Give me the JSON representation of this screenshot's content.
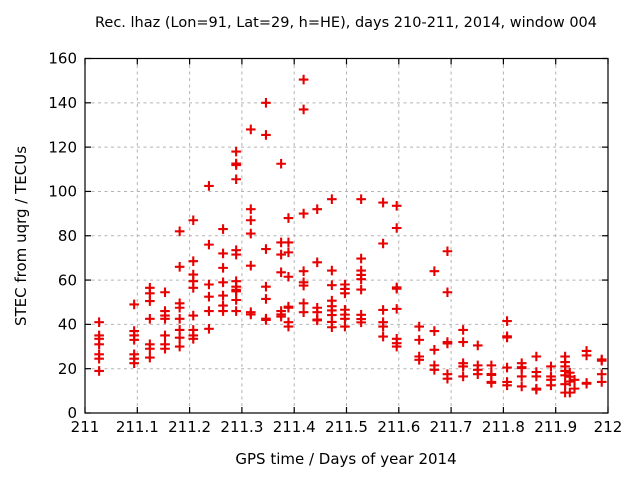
{
  "chart_data": {
    "type": "scatter",
    "title": "Rec. lhaz (Lon=91, Lat=29, h=HE), days 210-211, 2014, window 004",
    "xlabel": "GPS time / Days of year 2014",
    "ylabel": "STEC from uqrg / TECUs",
    "xlim": [
      211,
      212
    ],
    "ylim": [
      0,
      160
    ],
    "grid": true,
    "legend": "none",
    "marker": {
      "shape": "plus",
      "color": "#e60000",
      "size": 10,
      "stroke_width": 2.1
    },
    "grid_color": "#b3b3b3",
    "axis_color": "#000000",
    "background": "#ffffff",
    "xticks": [
      {
        "v": 211.0,
        "label": "211"
      },
      {
        "v": 211.1,
        "label": "211.1"
      },
      {
        "v": 211.2,
        "label": "211.2"
      },
      {
        "v": 211.3,
        "label": "211.3"
      },
      {
        "v": 211.4,
        "label": "211.4"
      },
      {
        "v": 211.5,
        "label": "211.5"
      },
      {
        "v": 211.6,
        "label": "211.6"
      },
      {
        "v": 211.7,
        "label": "211.7"
      },
      {
        "v": 211.8,
        "label": "211.8"
      },
      {
        "v": 211.9,
        "label": "211.9"
      },
      {
        "v": 212.0,
        "label": "212"
      }
    ],
    "yticks": [
      {
        "v": 0,
        "label": "0"
      },
      {
        "v": 20,
        "label": "20"
      },
      {
        "v": 40,
        "label": "40"
      },
      {
        "v": 60,
        "label": "60"
      },
      {
        "v": 80,
        "label": "80"
      },
      {
        "v": 100,
        "label": "100"
      },
      {
        "v": 120,
        "label": "120"
      },
      {
        "v": 140,
        "label": "140"
      },
      {
        "v": 160,
        "label": "160"
      }
    ],
    "series": [
      {
        "name": "STEC from uqrg",
        "points": [
          [
            211.027,
            41
          ],
          [
            211.027,
            35
          ],
          [
            211.027,
            33.5
          ],
          [
            211.027,
            31
          ],
          [
            211.027,
            26.5
          ],
          [
            211.027,
            24.5
          ],
          [
            211.027,
            19
          ],
          [
            211.094,
            49
          ],
          [
            211.094,
            37
          ],
          [
            211.094,
            35
          ],
          [
            211.094,
            33
          ],
          [
            211.094,
            26.5
          ],
          [
            211.094,
            24.5
          ],
          [
            211.094,
            22.5
          ],
          [
            211.124,
            56.5
          ],
          [
            211.124,
            54
          ],
          [
            211.124,
            50.5
          ],
          [
            211.124,
            42.5
          ],
          [
            211.124,
            31
          ],
          [
            211.124,
            29
          ],
          [
            211.124,
            25
          ],
          [
            211.153,
            54.5
          ],
          [
            211.153,
            46
          ],
          [
            211.153,
            44
          ],
          [
            211.153,
            42.5
          ],
          [
            211.153,
            35
          ],
          [
            211.153,
            31
          ],
          [
            211.153,
            29
          ],
          [
            211.181,
            82
          ],
          [
            211.181,
            66
          ],
          [
            211.181,
            49.5
          ],
          [
            211.181,
            47.5
          ],
          [
            211.181,
            42.5
          ],
          [
            211.181,
            37.5
          ],
          [
            211.181,
            34
          ],
          [
            211.181,
            30
          ],
          [
            211.207,
            87
          ],
          [
            211.207,
            68.5
          ],
          [
            211.207,
            62.5
          ],
          [
            211.207,
            59.5
          ],
          [
            211.207,
            56.5
          ],
          [
            211.207,
            44
          ],
          [
            211.207,
            37.5
          ],
          [
            211.207,
            35
          ],
          [
            211.207,
            33.5
          ],
          [
            211.237,
            102.5
          ],
          [
            211.237,
            76
          ],
          [
            211.237,
            58
          ],
          [
            211.237,
            52.5
          ],
          [
            211.237,
            46
          ],
          [
            211.237,
            38
          ],
          [
            211.264,
            83
          ],
          [
            211.264,
            72
          ],
          [
            211.264,
            65.5
          ],
          [
            211.264,
            59
          ],
          [
            211.264,
            53
          ],
          [
            211.264,
            48.5
          ],
          [
            211.264,
            46
          ],
          [
            211.289,
            118
          ],
          [
            211.289,
            112.6
          ],
          [
            211.289,
            111.9
          ],
          [
            211.289,
            105.5
          ],
          [
            211.289,
            73.5
          ],
          [
            211.289,
            71.5
          ],
          [
            211.289,
            59.5
          ],
          [
            211.289,
            57
          ],
          [
            211.289,
            55.6
          ],
          [
            211.289,
            54.9
          ],
          [
            211.289,
            51
          ],
          [
            211.289,
            46
          ],
          [
            211.317,
            128
          ],
          [
            211.317,
            92
          ],
          [
            211.317,
            87
          ],
          [
            211.317,
            81
          ],
          [
            211.317,
            66.5
          ],
          [
            211.317,
            45.5
          ],
          [
            211.317,
            44.5
          ],
          [
            211.346,
            140
          ],
          [
            211.346,
            125.5
          ],
          [
            211.346,
            74
          ],
          [
            211.346,
            57
          ],
          [
            211.346,
            51.5
          ],
          [
            211.346,
            42.6
          ],
          [
            211.346,
            42
          ],
          [
            211.375,
            112.5
          ],
          [
            211.375,
            77
          ],
          [
            211.375,
            71.5
          ],
          [
            211.375,
            63.5
          ],
          [
            211.375,
            46
          ],
          [
            211.375,
            44.5
          ],
          [
            211.375,
            43.5
          ],
          [
            211.389,
            88
          ],
          [
            211.389,
            77
          ],
          [
            211.389,
            72.5
          ],
          [
            211.389,
            61.5
          ],
          [
            211.389,
            48
          ],
          [
            211.389,
            47.5
          ],
          [
            211.389,
            41
          ],
          [
            211.389,
            39
          ],
          [
            211.418,
            150.5
          ],
          [
            211.418,
            137
          ],
          [
            211.418,
            90
          ],
          [
            211.418,
            64
          ],
          [
            211.418,
            59
          ],
          [
            211.418,
            57.5
          ],
          [
            211.418,
            49.5
          ],
          [
            211.418,
            45.5
          ],
          [
            211.444,
            92
          ],
          [
            211.444,
            68
          ],
          [
            211.444,
            47.5
          ],
          [
            211.444,
            45.5
          ],
          [
            211.444,
            42.2
          ],
          [
            211.444,
            41.8
          ],
          [
            211.472,
            96.5
          ],
          [
            211.472,
            64.3
          ],
          [
            211.472,
            57.7
          ],
          [
            211.472,
            50.7
          ],
          [
            211.472,
            48.2
          ],
          [
            211.472,
            46.3
          ],
          [
            211.472,
            44.2
          ],
          [
            211.472,
            41.1
          ],
          [
            211.472,
            38.7
          ],
          [
            211.497,
            58
          ],
          [
            211.497,
            56
          ],
          [
            211.497,
            54
          ],
          [
            211.497,
            46.6
          ],
          [
            211.497,
            44.4
          ],
          [
            211.497,
            42.5
          ],
          [
            211.497,
            39
          ],
          [
            211.528,
            96.5
          ],
          [
            211.528,
            69.7
          ],
          [
            211.528,
            64.3
          ],
          [
            211.528,
            62.3
          ],
          [
            211.528,
            60.4
          ],
          [
            211.528,
            55.7
          ],
          [
            211.528,
            44.3
          ],
          [
            211.528,
            42.4
          ],
          [
            211.528,
            40.9
          ],
          [
            211.57,
            95
          ],
          [
            211.57,
            76.5
          ],
          [
            211.57,
            46.5
          ],
          [
            211.57,
            41
          ],
          [
            211.57,
            39
          ],
          [
            211.57,
            34.5
          ],
          [
            211.596,
            93.5
          ],
          [
            211.596,
            83.5
          ],
          [
            211.596,
            56.7
          ],
          [
            211.596,
            56.1
          ],
          [
            211.596,
            47
          ],
          [
            211.596,
            33.5
          ],
          [
            211.596,
            31.5
          ],
          [
            211.596,
            30
          ],
          [
            211.639,
            39
          ],
          [
            211.639,
            33
          ],
          [
            211.639,
            25.5
          ],
          [
            211.639,
            24
          ],
          [
            211.668,
            64
          ],
          [
            211.668,
            37
          ],
          [
            211.668,
            28.5
          ],
          [
            211.668,
            21.5
          ],
          [
            211.668,
            19.5
          ],
          [
            211.693,
            73
          ],
          [
            211.693,
            54.5
          ],
          [
            211.693,
            32
          ],
          [
            211.693,
            31.4
          ],
          [
            211.693,
            17.5
          ],
          [
            211.693,
            15.5
          ],
          [
            211.723,
            37.5
          ],
          [
            211.723,
            32
          ],
          [
            211.723,
            22.5
          ],
          [
            211.723,
            21
          ],
          [
            211.723,
            16.5
          ],
          [
            211.751,
            30.5
          ],
          [
            211.751,
            21.5
          ],
          [
            211.751,
            19.5
          ],
          [
            211.751,
            17.5
          ],
          [
            211.777,
            21.5
          ],
          [
            211.777,
            17.6
          ],
          [
            211.777,
            17.2
          ],
          [
            211.777,
            14
          ],
          [
            211.777,
            13.6
          ],
          [
            211.807,
            41.5
          ],
          [
            211.807,
            34.6
          ],
          [
            211.807,
            34.1
          ],
          [
            211.807,
            20.5
          ],
          [
            211.807,
            14
          ],
          [
            211.807,
            12.5
          ],
          [
            211.835,
            22.5
          ],
          [
            211.835,
            20.7
          ],
          [
            211.835,
            20.3
          ],
          [
            211.835,
            16.5
          ],
          [
            211.835,
            12
          ],
          [
            211.863,
            25.5
          ],
          [
            211.863,
            18.5
          ],
          [
            211.863,
            16.5
          ],
          [
            211.863,
            11
          ],
          [
            211.863,
            10.6
          ],
          [
            211.891,
            21
          ],
          [
            211.891,
            16.5
          ],
          [
            211.891,
            15
          ],
          [
            211.891,
            12.5
          ],
          [
            211.918,
            25.5
          ],
          [
            211.918,
            23
          ],
          [
            211.918,
            21
          ],
          [
            211.918,
            19
          ],
          [
            211.918,
            17
          ],
          [
            211.918,
            13
          ],
          [
            211.918,
            9.2
          ],
          [
            211.927,
            18.2
          ],
          [
            211.927,
            16.4
          ],
          [
            211.927,
            14.2
          ],
          [
            211.927,
            9.2
          ],
          [
            211.936,
            15
          ],
          [
            211.936,
            11
          ],
          [
            211.959,
            28
          ],
          [
            211.959,
            26
          ],
          [
            211.959,
            13.6
          ],
          [
            211.959,
            13.2
          ],
          [
            211.988,
            24.2
          ],
          [
            211.988,
            23.6
          ],
          [
            211.988,
            17.5
          ],
          [
            211.988,
            14
          ]
        ]
      }
    ]
  }
}
